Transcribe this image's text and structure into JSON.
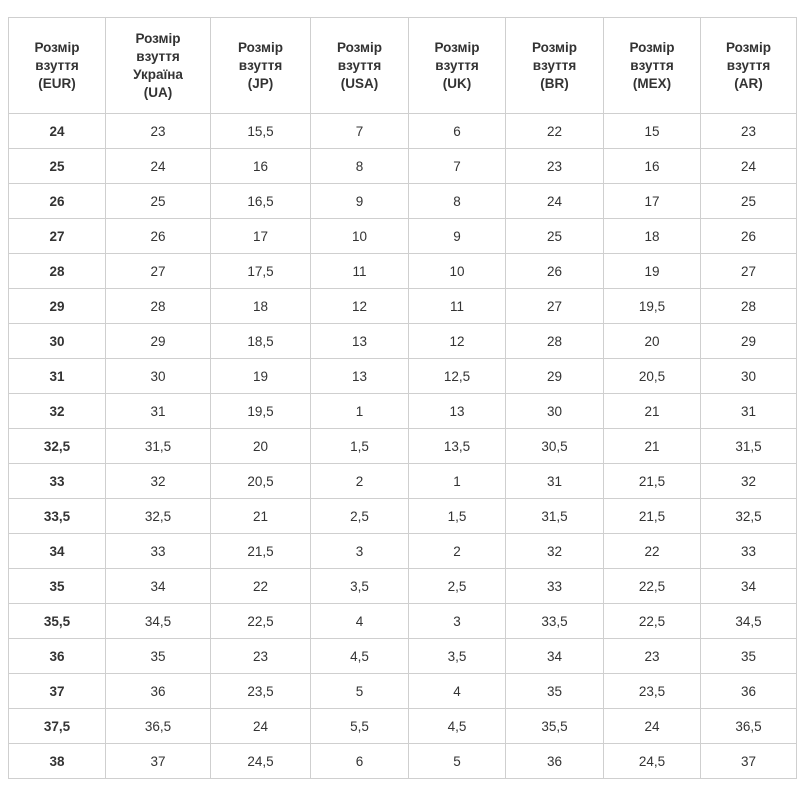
{
  "table": {
    "headers": [
      [
        "Розмір",
        "взуття",
        "(EUR)"
      ],
      [
        "Розмір",
        "взуття",
        "Україна",
        "(UA)"
      ],
      [
        "Розмір",
        "взуття",
        "(JP)"
      ],
      [
        "Розмір",
        "взуття",
        "(USA)"
      ],
      [
        "Розмір",
        "взуття",
        "(UK)"
      ],
      [
        "Розмір",
        "взуття",
        "(BR)"
      ],
      [
        "Розмір",
        "взуття",
        "(MEX)"
      ],
      [
        "Розмір",
        "взуття",
        "(AR)"
      ]
    ],
    "rows": [
      [
        "24",
        "23",
        "15,5",
        "7",
        "6",
        "22",
        "15",
        "23"
      ],
      [
        "25",
        "24",
        "16",
        "8",
        "7",
        "23",
        "16",
        "24"
      ],
      [
        "26",
        "25",
        "16,5",
        "9",
        "8",
        "24",
        "17",
        "25"
      ],
      [
        "27",
        "26",
        "17",
        "10",
        "9",
        "25",
        "18",
        "26"
      ],
      [
        "28",
        "27",
        "17,5",
        "11",
        "10",
        "26",
        "19",
        "27"
      ],
      [
        "29",
        "28",
        "18",
        "12",
        "11",
        "27",
        "19,5",
        "28"
      ],
      [
        "30",
        "29",
        "18,5",
        "13",
        "12",
        "28",
        "20",
        "29"
      ],
      [
        "31",
        "30",
        "19",
        "13",
        "12,5",
        "29",
        "20,5",
        "30"
      ],
      [
        "32",
        "31",
        "19,5",
        "1",
        "13",
        "30",
        "21",
        "31"
      ],
      [
        "32,5",
        "31,5",
        "20",
        "1,5",
        "13,5",
        "30,5",
        "21",
        "31,5"
      ],
      [
        "33",
        "32",
        "20,5",
        "2",
        "1",
        "31",
        "21,5",
        "32"
      ],
      [
        "33,5",
        "32,5",
        "21",
        "2,5",
        "1,5",
        "31,5",
        "21,5",
        "32,5"
      ],
      [
        "34",
        "33",
        "21,5",
        "3",
        "2",
        "32",
        "22",
        "33"
      ],
      [
        "35",
        "34",
        "22",
        "3,5",
        "2,5",
        "33",
        "22,5",
        "34"
      ],
      [
        "35,5",
        "34,5",
        "22,5",
        "4",
        "3",
        "33,5",
        "22,5",
        "34,5"
      ],
      [
        "36",
        "35",
        "23",
        "4,5",
        "3,5",
        "34",
        "23",
        "35"
      ],
      [
        "37",
        "36",
        "23,5",
        "5",
        "4",
        "35",
        "23,5",
        "36"
      ],
      [
        "37,5",
        "36,5",
        "24",
        "5,5",
        "4,5",
        "35,5",
        "24",
        "36,5"
      ],
      [
        "38",
        "37",
        "24,5",
        "6",
        "5",
        "36",
        "24,5",
        "37"
      ]
    ]
  }
}
